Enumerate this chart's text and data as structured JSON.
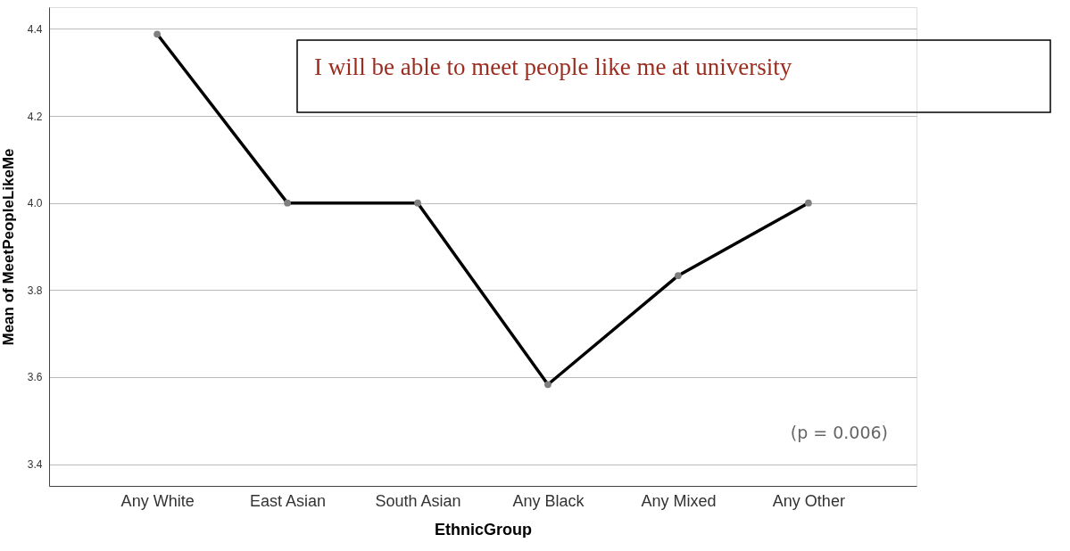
{
  "chart_data": {
    "type": "line",
    "title": "I will be able to meet people like me at university",
    "xlabel": "EthnicGroup",
    "ylabel": "Mean of MeetPeopleLikeMe",
    "categories": [
      "Any White",
      "East Asian",
      "South Asian",
      "Any Black",
      "Any Mixed",
      "Any Other"
    ],
    "series": [
      {
        "color": "#000000",
        "values": [
          4.388,
          4.0,
          4.0,
          3.583,
          3.833,
          4.0
        ]
      }
    ],
    "ylim": [
      3.35,
      4.45
    ],
    "yticks": [
      3.4,
      3.6,
      3.8,
      {
        "value": 4,
        "label": "4.0"
      },
      4.2,
      4.4
    ],
    "grid": "y",
    "marker": "circle",
    "line_style": "solid",
    "legend": false,
    "annotations": [
      "(p = 0.006)"
    ]
  }
}
